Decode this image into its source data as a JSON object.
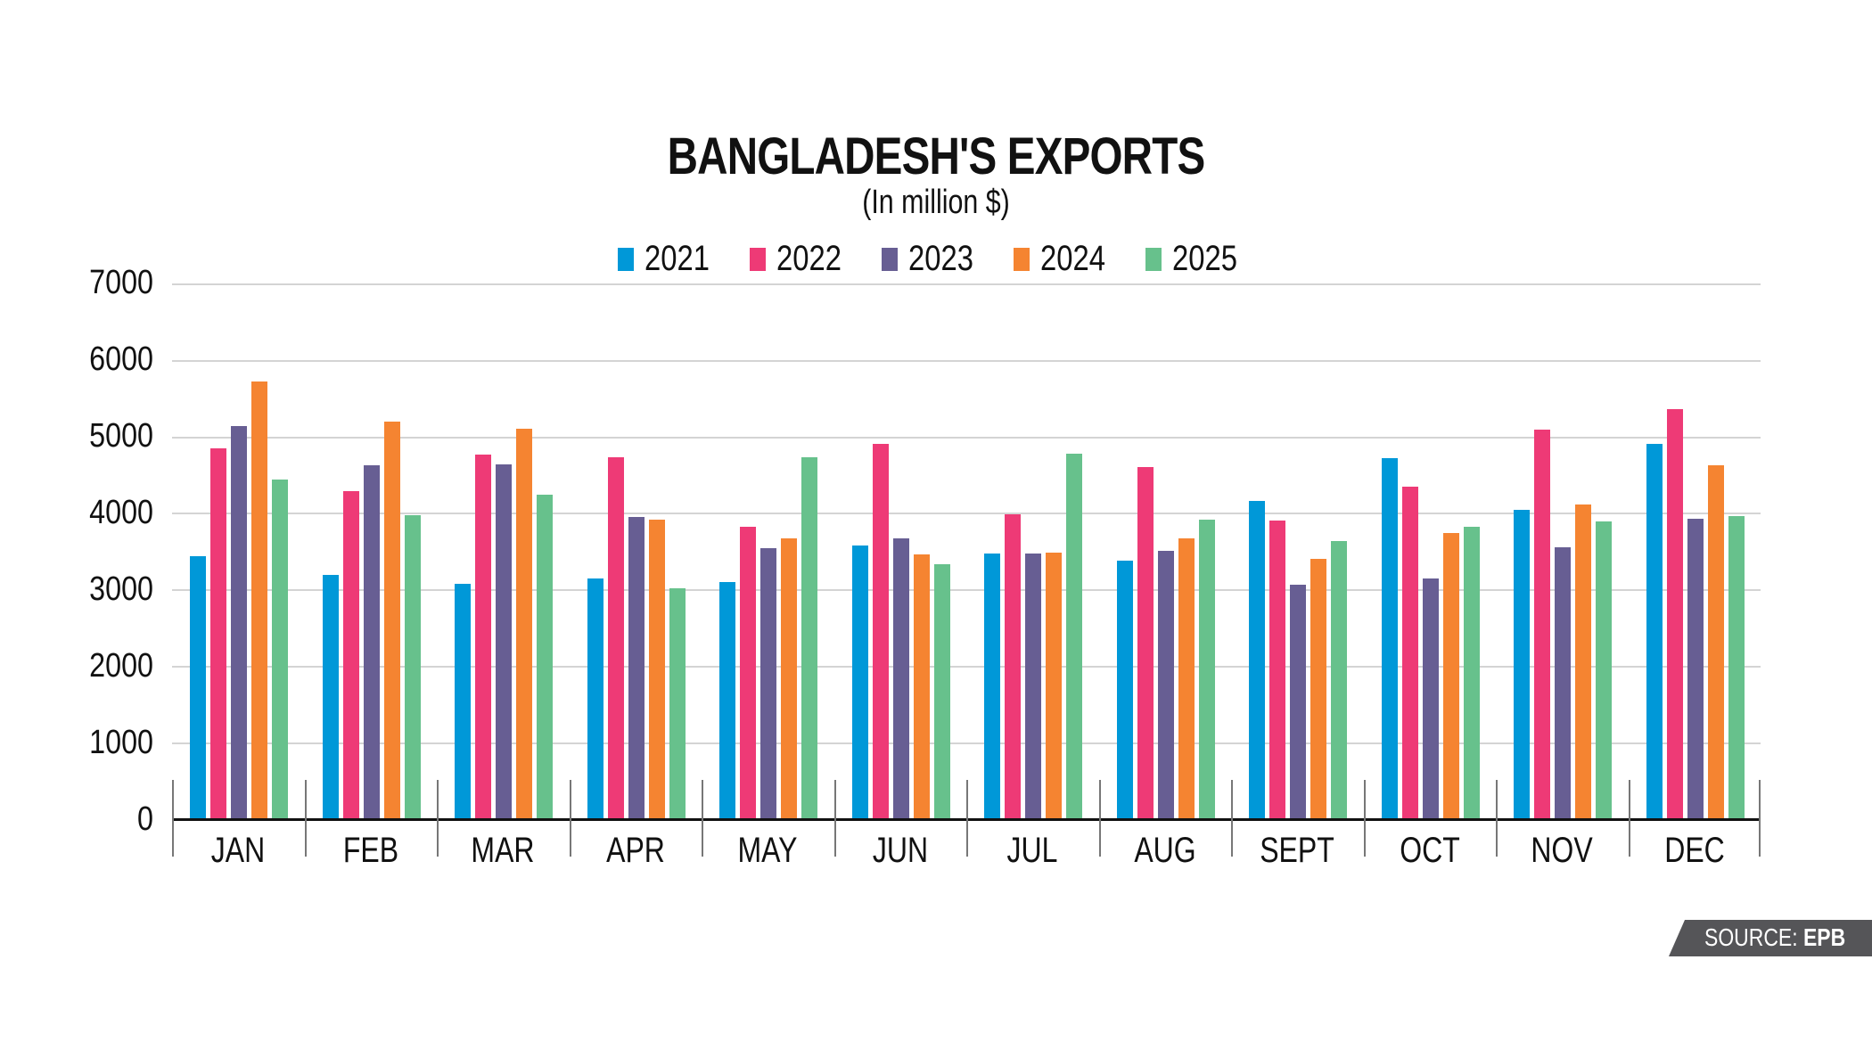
{
  "header": {
    "title": "BANGLADESH'S EXPORTS",
    "subtitle": "(In million $)"
  },
  "legend": [
    {
      "label": "2021",
      "color": "#0098d8"
    },
    {
      "label": "2022",
      "color": "#ee3a76"
    },
    {
      "label": "2023",
      "color": "#675e93"
    },
    {
      "label": "2024",
      "color": "#f58431"
    },
    {
      "label": "2025",
      "color": "#67c18c"
    }
  ],
  "yaxis": {
    "ticks": [
      "7000",
      "6000",
      "5000",
      "4000",
      "3000",
      "2000",
      "1000",
      "0"
    ]
  },
  "xaxis": {
    "ticks": [
      "JAN",
      "FEB",
      "MAR",
      "APR",
      "MAY",
      "JUN",
      "JUL",
      "AUG",
      "SEPT",
      "OCT",
      "NOV",
      "DEC"
    ]
  },
  "source": {
    "prefix": "SOURCE:",
    "name": "EPB"
  },
  "chart_data": {
    "type": "bar",
    "title": "BANGLADESH'S EXPORTS",
    "subtitle": "(In million $)",
    "xlabel": "",
    "ylabel": "",
    "ylim": [
      0,
      7000
    ],
    "yticks": [
      0,
      1000,
      2000,
      3000,
      4000,
      5000,
      6000,
      7000
    ],
    "grid": true,
    "legend_position": "top",
    "categories": [
      "JAN",
      "FEB",
      "MAR",
      "APR",
      "MAY",
      "JUN",
      "JUL",
      "AUG",
      "SEPT",
      "OCT",
      "NOV",
      "DEC"
    ],
    "series": [
      {
        "name": "2021",
        "color": "#0098d8",
        "values": [
          3440,
          3190,
          3080,
          3140,
          3100,
          3570,
          3470,
          3380,
          4160,
          4720,
          4040,
          4900
        ]
      },
      {
        "name": "2022",
        "color": "#ee3a76",
        "values": [
          4850,
          4290,
          4760,
          4730,
          3820,
          4900,
          3980,
          4600,
          3900,
          4350,
          5090,
          5360
        ]
      },
      {
        "name": "2023",
        "color": "#675e93",
        "values": [
          5140,
          4620,
          4640,
          3950,
          3540,
          3670,
          3470,
          3510,
          3060,
          3140,
          3550,
          3920
        ]
      },
      {
        "name": "2024",
        "color": "#f58431",
        "values": [
          5720,
          5190,
          5100,
          3910,
          3670,
          3460,
          3480,
          3670,
          3400,
          3740,
          4110,
          4620
        ]
      },
      {
        "name": "2025",
        "color": "#67c18c",
        "values": [
          4440,
          3970,
          4240,
          3020,
          4730,
          3330,
          4770,
          3910,
          3630,
          3820,
          3890,
          3960
        ]
      }
    ]
  }
}
